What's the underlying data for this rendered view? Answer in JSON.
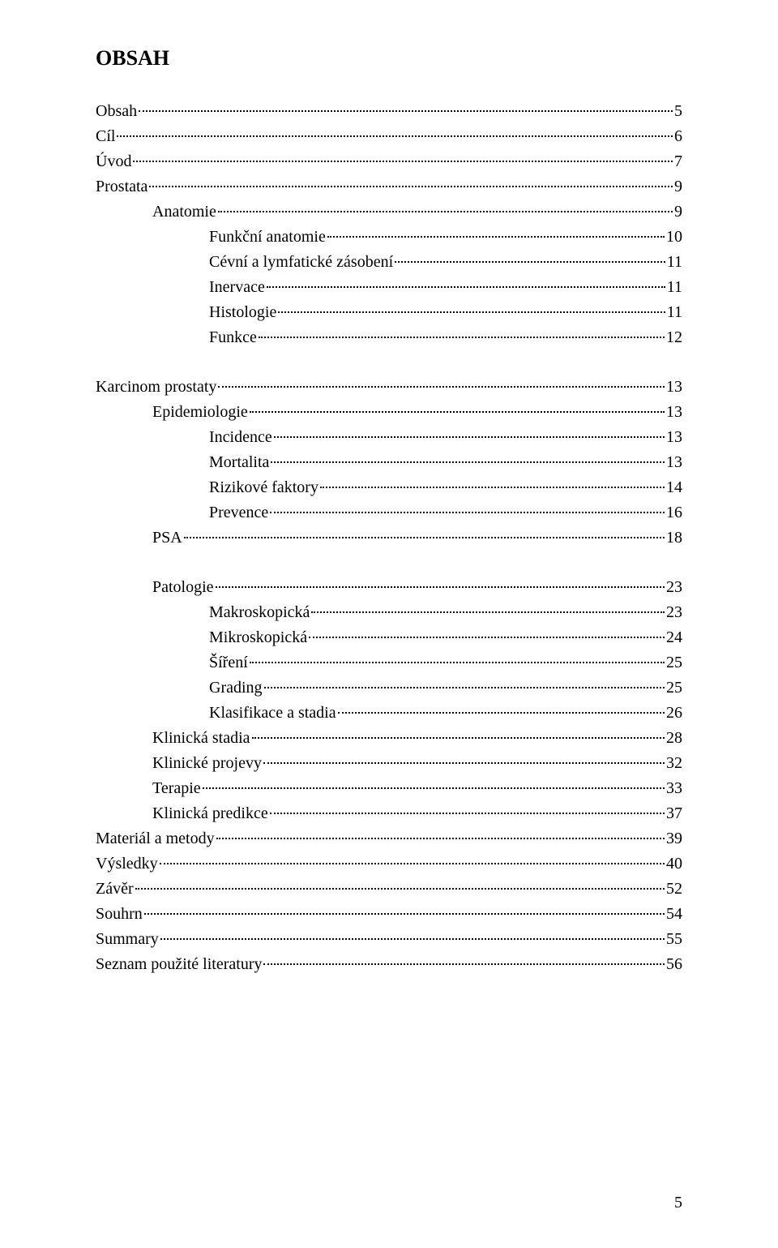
{
  "title": "OBSAH",
  "footer_page": "5",
  "toc": [
    {
      "label": "Obsah",
      "page": "5",
      "indent": 0,
      "gap_before": false
    },
    {
      "label": "Cíl",
      "page": "6",
      "indent": 0,
      "gap_before": false
    },
    {
      "label": "Úvod",
      "page": "7",
      "indent": 0,
      "gap_before": false
    },
    {
      "label": "Prostata",
      "page": "9",
      "indent": 0,
      "gap_before": false
    },
    {
      "label": "Anatomie",
      "page": "9",
      "indent": 1,
      "gap_before": false
    },
    {
      "label": "Funkční anatomie",
      "page": "10",
      "indent": 2,
      "gap_before": false
    },
    {
      "label": "Cévní a lymfatické zásobení",
      "page": "11",
      "indent": 2,
      "gap_before": false
    },
    {
      "label": "Inervace",
      "page": "11",
      "indent": 2,
      "gap_before": false
    },
    {
      "label": "Histologie",
      "page": "11",
      "indent": 2,
      "gap_before": false
    },
    {
      "label": "Funkce",
      "page": "12",
      "indent": 2,
      "gap_before": false
    },
    {
      "label": "Karcinom prostaty",
      "page": "13",
      "indent": 0,
      "gap_before": true
    },
    {
      "label": "Epidemiologie",
      "page": "13",
      "indent": 1,
      "gap_before": false
    },
    {
      "label": "Incidence",
      "page": "13",
      "indent": 2,
      "gap_before": false
    },
    {
      "label": "Mortalita",
      "page": "13",
      "indent": 2,
      "gap_before": false
    },
    {
      "label": "Rizikové faktory",
      "page": "14",
      "indent": 2,
      "gap_before": false
    },
    {
      "label": "Prevence",
      "page": "16",
      "indent": 2,
      "gap_before": false
    },
    {
      "label": "PSA",
      "page": "18",
      "indent": 1,
      "gap_before": false
    },
    {
      "label": "Patologie",
      "page": "23",
      "indent": 1,
      "gap_before": true
    },
    {
      "label": "Makroskopická",
      "page": "23",
      "indent": 2,
      "gap_before": false
    },
    {
      "label": "Mikroskopická",
      "page": "24",
      "indent": 2,
      "gap_before": false
    },
    {
      "label": "Šíření",
      "page": "25",
      "indent": 2,
      "gap_before": false
    },
    {
      "label": "Grading",
      "page": "25",
      "indent": 2,
      "gap_before": false
    },
    {
      "label": "Klasifikace a stadia",
      "page": "26",
      "indent": 2,
      "gap_before": false
    },
    {
      "label": "Klinická stadia",
      "page": "28",
      "indent": 1,
      "gap_before": false
    },
    {
      "label": "Klinické projevy",
      "page": "32",
      "indent": 1,
      "gap_before": false
    },
    {
      "label": "Terapie",
      "page": "33",
      "indent": 1,
      "gap_before": false
    },
    {
      "label": "Klinická predikce",
      "page": "37",
      "indent": 1,
      "gap_before": false
    },
    {
      "label": "Materiál a metody",
      "page": "39",
      "indent": 0,
      "gap_before": false
    },
    {
      "label": "Výsledky",
      "page": "40",
      "indent": 0,
      "gap_before": false
    },
    {
      "label": "Závěr",
      "page": "52",
      "indent": 0,
      "gap_before": false
    },
    {
      "label": "Souhrn",
      "page": "54",
      "indent": 0,
      "gap_before": false
    },
    {
      "label": "Summary",
      "page": "55",
      "indent": 0,
      "gap_before": false
    },
    {
      "label": "Seznam  použité literatury",
      "page": "56",
      "indent": 0,
      "gap_before": false
    }
  ]
}
